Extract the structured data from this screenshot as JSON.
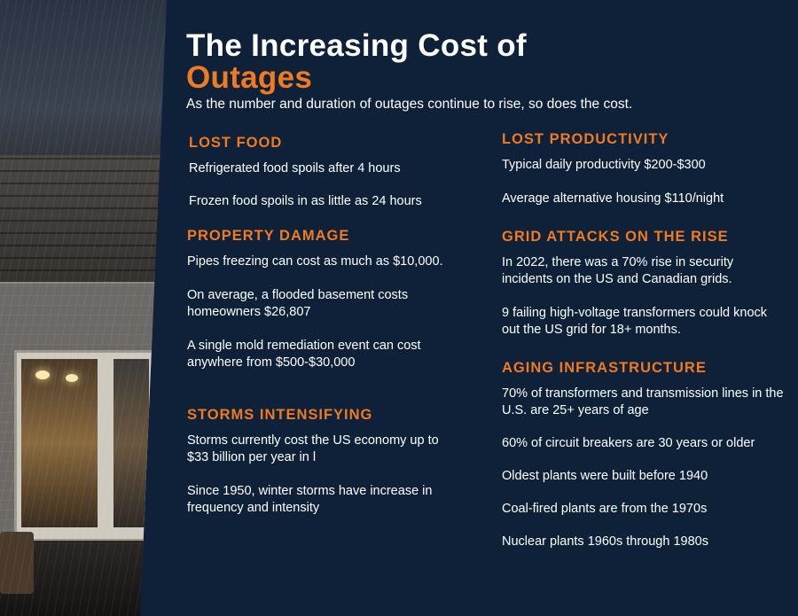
{
  "title": {
    "line1": "The Increasing Cost of",
    "line2": "Outages"
  },
  "subtitle": "As the number and duration of outages continue to rise, so does the cost.",
  "colors": {
    "background": "#0e2139",
    "accent": "#f07a22",
    "text": "#ffffff"
  },
  "sections": {
    "lost_food": {
      "heading": "LOST FOOD",
      "items": [
        "Refrigerated food spoils after 4 hours",
        "Frozen food spoils in as little as 24 hours"
      ]
    },
    "property_damage": {
      "heading": "PROPERTY DAMAGE",
      "items": [
        "Pipes freezing can cost as much as $10,000.",
        "On average, a flooded basement costs homeowners $26,807",
        "A single mold remediation event can cost anywhere from $500-$30,000"
      ]
    },
    "storms": {
      "heading": "STORMS INTENSIFYING",
      "items": [
        "Storms currently cost the US economy up to $33 billion per year in l",
        "Since 1950, winter storms have increase in frequency and intensity"
      ]
    },
    "lost_productivity": {
      "heading": "LOST PRODUCTIVITY",
      "items": [
        "Typical daily productivity $200-$300",
        "Average alternative housing $110/night"
      ]
    },
    "grid_attacks": {
      "heading": "GRID ATTACKS ON THE RISE",
      "items": [
        "In 2022, there was a 70% rise in security incidents on the US and Canadian grids.",
        "9 failing high-voltage transformers could knock out the US grid for 18+ months."
      ]
    },
    "aging_infrastructure": {
      "heading": "AGING INFRASTRUCTURE",
      "items": [
        "70% of transformers and transmission lines in the U.S. are 25+ years of age",
        "60% of circuit breakers are 30 years or older",
        "Oldest plants were built before 1940",
        "Coal-fired plants are from the 1970s",
        "Nuclear plants 1960s through 1980s"
      ]
    }
  }
}
